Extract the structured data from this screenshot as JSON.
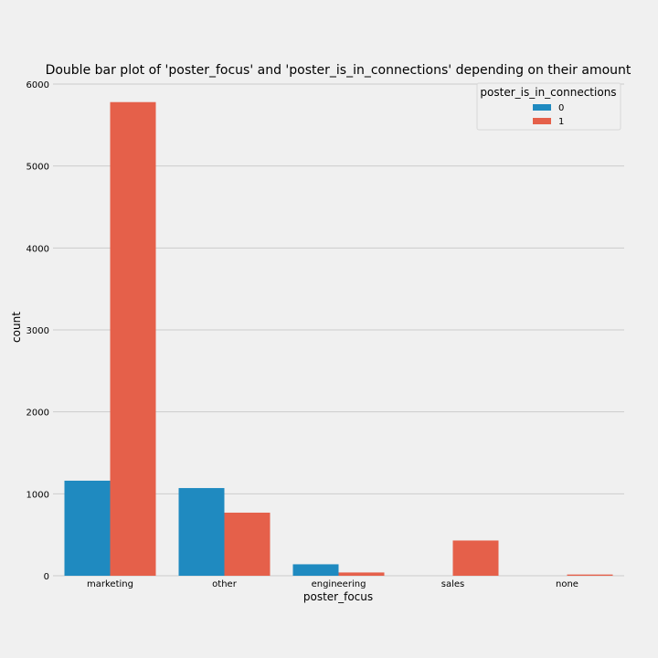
{
  "chart_data": {
    "type": "bar",
    "title": "Double bar plot of 'poster_focus' and 'poster_is_in_connections' depending on their amount",
    "xlabel": "poster_focus",
    "ylabel": "count",
    "categories": [
      "marketing",
      "other",
      "engineering",
      "sales",
      "none"
    ],
    "series": [
      {
        "name": "0",
        "color": "#1f8ac0",
        "values": [
          1160,
          1070,
          140,
          0,
          0
        ]
      },
      {
        "name": "1",
        "color": "#e5604a",
        "values": [
          5780,
          770,
          40,
          430,
          15
        ]
      }
    ],
    "ylim": [
      0,
      6000
    ],
    "yticks": [
      0,
      1000,
      2000,
      3000,
      4000,
      5000,
      6000
    ],
    "grid": true,
    "legend": {
      "title": "poster_is_in_connections",
      "position": "top-right"
    }
  }
}
